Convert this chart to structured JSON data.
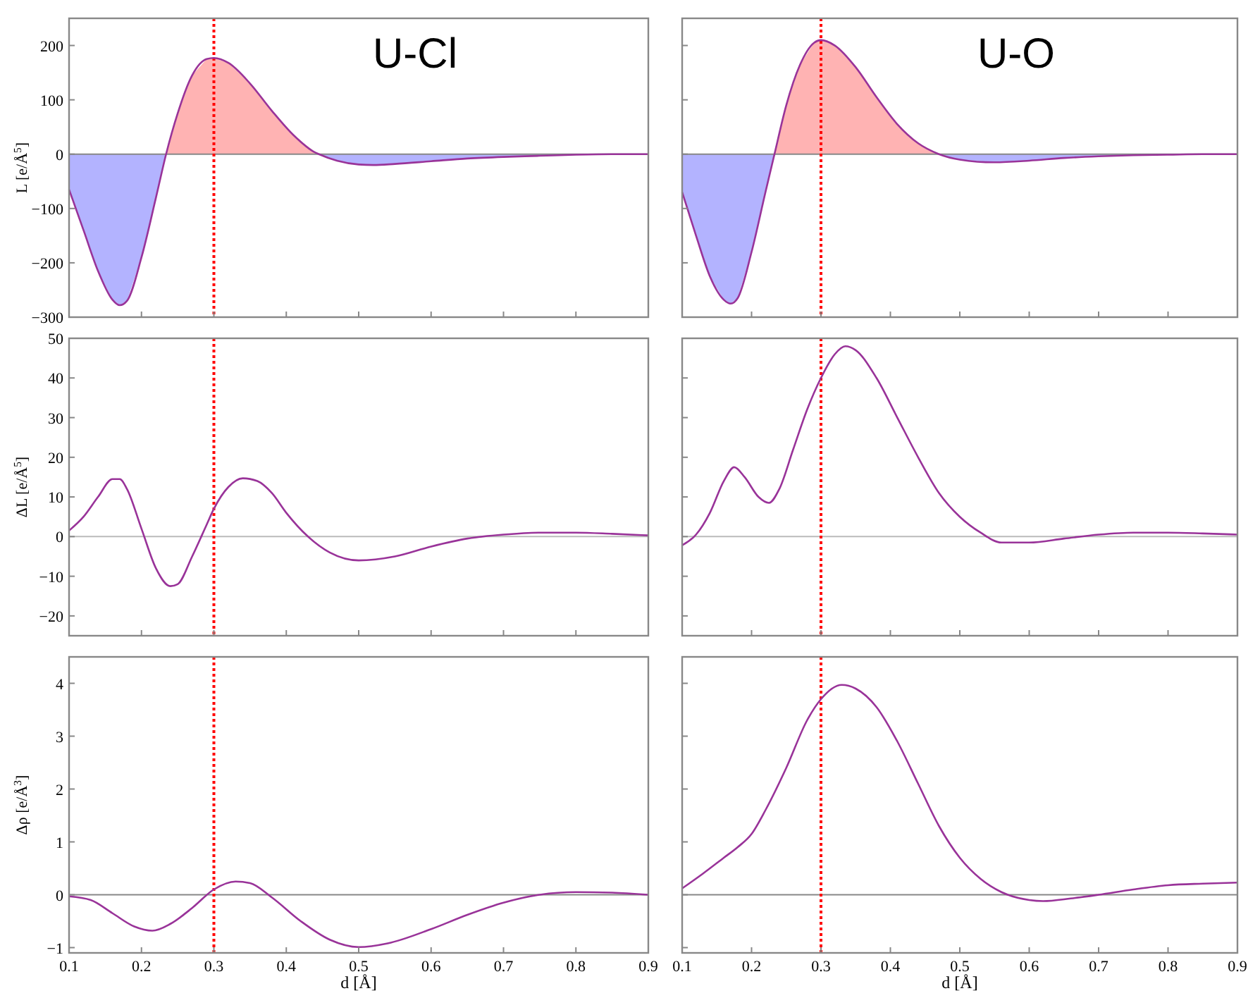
{
  "chart_data": [
    {
      "type": "line",
      "title": "U-Cl",
      "ylabel": "L [e/Å$^{5}$]",
      "xlim": [
        0.1,
        0.9
      ],
      "xticks": [
        {
          "value": 0.1,
          "label": null
        },
        {
          "value": 0.2,
          "label": null
        },
        {
          "value": 0.3,
          "label": null
        },
        {
          "value": 0.4,
          "label": null
        },
        {
          "value": 0.5,
          "label": null
        },
        {
          "value": 0.6,
          "label": null
        },
        {
          "value": 0.7,
          "label": null
        },
        {
          "value": 0.8,
          "label": null
        },
        {
          "value": 0.9,
          "label": null
        }
      ],
      "ylim": [
        -300,
        250
      ],
      "yticks": [
        -300,
        -200,
        -100,
        0,
        100,
        200
      ],
      "tick_labels": "y",
      "ref_lines": [
        {
          "axis": "y",
          "value": 0,
          "color": "#888888",
          "line_style": "solid"
        },
        {
          "axis": "x",
          "value": 0.3,
          "color": "#ff0000",
          "line_style": "dotted"
        }
      ],
      "series": [
        {
          "type": "area",
          "color": "#ffb3b3",
          "x": [
            0.234,
            0.25,
            0.27,
            0.29,
            0.3,
            0.32,
            0.35,
            0.38,
            0.41,
            0.44,
            0.445
          ],
          "values": [
            0,
            75,
            145,
            175,
            177,
            168,
            130,
            80,
            35,
            3,
            0
          ]
        },
        {
          "type": "area",
          "color": "#b3b3ff",
          "x": [
            0.1,
            0.12,
            0.14,
            0.16,
            0.17,
            0.18,
            0.2,
            0.22,
            0.234
          ],
          "values": [
            -65,
            -140,
            -215,
            -268,
            -278,
            -270,
            -190,
            -80,
            0
          ]
        },
        {
          "type": "area",
          "color": "#b3b3ff",
          "x": [
            0.445,
            0.47,
            0.5,
            0.52,
            0.55,
            0.6,
            0.65,
            0.7,
            0.75,
            0.8,
            0.85,
            0.9
          ],
          "values": [
            0,
            -12,
            -19,
            -20,
            -18,
            -13,
            -8,
            -5,
            -3,
            -1,
            0,
            0
          ]
        },
        {
          "color": "#993399",
          "x": [
            0.1,
            0.12,
            0.14,
            0.16,
            0.17,
            0.18,
            0.2,
            0.22,
            0.234,
            0.25,
            0.27,
            0.29,
            0.3,
            0.32,
            0.35,
            0.38,
            0.41,
            0.44,
            0.445,
            0.47,
            0.5,
            0.52,
            0.55,
            0.6,
            0.65,
            0.7,
            0.75,
            0.8,
            0.85,
            0.9
          ],
          "values": [
            -65,
            -140,
            -215,
            -268,
            -278,
            -270,
            -190,
            -80,
            0,
            75,
            145,
            175,
            177,
            168,
            130,
            80,
            35,
            3,
            0,
            -12,
            -19,
            -20,
            -18,
            -13,
            -8,
            -5,
            -3,
            -1,
            0,
            0
          ]
        }
      ]
    },
    {
      "type": "line",
      "title": "U-O",
      "xlim": [
        0.1,
        0.9
      ],
      "xticks": [
        {
          "value": 0.1,
          "label": null
        },
        {
          "value": 0.2,
          "label": null
        },
        {
          "value": 0.3,
          "label": null
        },
        {
          "value": 0.4,
          "label": null
        },
        {
          "value": 0.5,
          "label": null
        },
        {
          "value": 0.6,
          "label": null
        },
        {
          "value": 0.7,
          "label": null
        },
        {
          "value": 0.8,
          "label": null
        },
        {
          "value": 0.9,
          "label": null
        }
      ],
      "ylim": [
        -300,
        250
      ],
      "yticks": [
        {
          "value": -300,
          "label": null
        },
        {
          "value": -200,
          "label": null
        },
        {
          "value": -100,
          "label": null
        },
        {
          "value": 0,
          "label": null
        },
        {
          "value": 100,
          "label": null
        },
        {
          "value": 200,
          "label": null
        }
      ],
      "tick_labels": false,
      "ref_lines": [
        {
          "axis": "y",
          "value": 0,
          "color": "#888888",
          "line_style": "solid"
        },
        {
          "axis": "x",
          "value": 0.3,
          "color": "#ff0000",
          "line_style": "dotted"
        }
      ],
      "series": [
        {
          "type": "area",
          "color": "#ffb3b3",
          "x": [
            0.233,
            0.25,
            0.27,
            0.29,
            0.3,
            0.32,
            0.35,
            0.38,
            0.41,
            0.44,
            0.47
          ],
          "values": [
            0,
            90,
            165,
            205,
            210,
            200,
            160,
            105,
            55,
            20,
            0
          ]
        },
        {
          "type": "area",
          "color": "#b3b3ff",
          "x": [
            0.1,
            0.12,
            0.14,
            0.16,
            0.17,
            0.18,
            0.2,
            0.22,
            0.233
          ],
          "values": [
            -70,
            -150,
            -225,
            -268,
            -275,
            -265,
            -180,
            -70,
            0
          ]
        },
        {
          "type": "area",
          "color": "#b3b3ff",
          "x": [
            0.47,
            0.5,
            0.55,
            0.6,
            0.65,
            0.7,
            0.75,
            0.8,
            0.85,
            0.9
          ],
          "values": [
            0,
            -10,
            -15,
            -12,
            -7,
            -4,
            -2,
            -1,
            0,
            0
          ]
        },
        {
          "color": "#993399",
          "x": [
            0.1,
            0.12,
            0.14,
            0.16,
            0.17,
            0.18,
            0.2,
            0.22,
            0.233,
            0.25,
            0.27,
            0.29,
            0.3,
            0.32,
            0.35,
            0.38,
            0.41,
            0.44,
            0.47,
            0.5,
            0.55,
            0.6,
            0.65,
            0.7,
            0.75,
            0.8,
            0.85,
            0.9
          ],
          "values": [
            -70,
            -150,
            -225,
            -268,
            -275,
            -265,
            -180,
            -70,
            0,
            90,
            165,
            205,
            210,
            200,
            160,
            105,
            55,
            20,
            0,
            -10,
            -15,
            -12,
            -7,
            -4,
            -2,
            -1,
            0,
            0
          ]
        }
      ]
    },
    {
      "type": "line",
      "ylabel": "ΔL [e/Å$^{5}$]",
      "xlim": [
        0.1,
        0.9
      ],
      "xticks": [
        {
          "value": 0.1,
          "label": null
        },
        {
          "value": 0.2,
          "label": null
        },
        {
          "value": 0.3,
          "label": null
        },
        {
          "value": 0.4,
          "label": null
        },
        {
          "value": 0.5,
          "label": null
        },
        {
          "value": 0.6,
          "label": null
        },
        {
          "value": 0.7,
          "label": null
        },
        {
          "value": 0.8,
          "label": null
        },
        {
          "value": 0.9,
          "label": null
        }
      ],
      "ylim": [
        -25,
        50
      ],
      "yticks": [
        -20,
        -10,
        0,
        10,
        20,
        30,
        40,
        50
      ],
      "tick_labels": "y",
      "ref_lines": [
        {
          "axis": "y",
          "value": 0,
          "color": "#bbbbbb",
          "line_style": "solid"
        },
        {
          "axis": "x",
          "value": 0.3,
          "color": "#ff0000",
          "line_style": "dotted"
        }
      ],
      "series": [
        {
          "color": "#993399",
          "x": [
            0.1,
            0.12,
            0.14,
            0.16,
            0.17,
            0.18,
            0.2,
            0.22,
            0.24,
            0.25,
            0.27,
            0.29,
            0.3,
            0.32,
            0.34,
            0.36,
            0.38,
            0.4,
            0.43,
            0.46,
            0.5,
            0.55,
            0.6,
            0.65,
            0.7,
            0.75,
            0.8,
            0.85,
            0.9
          ],
          "values": [
            1.5,
            5,
            10,
            14.5,
            14.5,
            12,
            2,
            -8,
            -12.5,
            -12,
            -5,
            3,
            7,
            12.5,
            14.7,
            14,
            11,
            6,
            0,
            -4,
            -6,
            -5,
            -2.5,
            -0.5,
            0.5,
            1,
            1,
            0.7,
            0.3
          ]
        }
      ]
    },
    {
      "type": "line",
      "xlim": [
        0.1,
        0.9
      ],
      "xticks": [
        {
          "value": 0.1,
          "label": null
        },
        {
          "value": 0.2,
          "label": null
        },
        {
          "value": 0.3,
          "label": null
        },
        {
          "value": 0.4,
          "label": null
        },
        {
          "value": 0.5,
          "label": null
        },
        {
          "value": 0.6,
          "label": null
        },
        {
          "value": 0.7,
          "label": null
        },
        {
          "value": 0.8,
          "label": null
        },
        {
          "value": 0.9,
          "label": null
        }
      ],
      "ylim": [
        -25,
        50
      ],
      "yticks": [
        {
          "value": -20,
          "label": null
        },
        {
          "value": -10,
          "label": null
        },
        {
          "value": 0,
          "label": null
        },
        {
          "value": 10,
          "label": null
        },
        {
          "value": 20,
          "label": null
        },
        {
          "value": 30,
          "label": null
        },
        {
          "value": 40,
          "label": null
        },
        {
          "value": 50,
          "label": null
        }
      ],
      "tick_labels": false,
      "ref_lines": [
        {
          "axis": "y",
          "value": 0,
          "color": "#bbbbbb",
          "line_style": "solid"
        },
        {
          "axis": "x",
          "value": 0.3,
          "color": "#ff0000",
          "line_style": "dotted"
        }
      ],
      "series": [
        {
          "color": "#993399",
          "x": [
            0.1,
            0.12,
            0.14,
            0.16,
            0.175,
            0.19,
            0.21,
            0.225,
            0.24,
            0.26,
            0.28,
            0.3,
            0.32,
            0.335,
            0.35,
            0.38,
            0.41,
            0.44,
            0.47,
            0.5,
            0.53,
            0.56,
            0.6,
            0.65,
            0.7,
            0.75,
            0.8,
            0.85,
            0.9
          ],
          "values": [
            -2.2,
            0.5,
            6,
            14,
            17.5,
            15,
            10,
            8.5,
            12,
            22,
            32,
            40,
            46,
            48,
            47,
            40,
            30,
            20,
            11,
            5,
            1,
            -1.5,
            -1.5,
            -0.5,
            0.5,
            1,
            1,
            0.8,
            0.5
          ]
        }
      ]
    },
    {
      "type": "line",
      "xlabel": "d [Å]",
      "ylabel": "Δρ [e/Å$^{3}$]",
      "xlim": [
        0.1,
        0.9
      ],
      "xticks": [
        0.1,
        0.2,
        0.3,
        0.4,
        0.5,
        0.6,
        0.7,
        0.8,
        0.9
      ],
      "ylim": [
        -1.1,
        4.5
      ],
      "yticks": [
        -1,
        0,
        1,
        2,
        3,
        4
      ],
      "ref_lines": [
        {
          "axis": "y",
          "value": 0,
          "color": "#888888",
          "line_style": "solid"
        },
        {
          "axis": "x",
          "value": 0.3,
          "color": "#ff0000",
          "line_style": "dotted"
        }
      ],
      "series": [
        {
          "color": "#993399",
          "x": [
            0.1,
            0.13,
            0.16,
            0.19,
            0.215,
            0.24,
            0.27,
            0.3,
            0.33,
            0.35,
            0.38,
            0.42,
            0.46,
            0.5,
            0.54,
            0.6,
            0.65,
            0.7,
            0.75,
            0.8,
            0.85,
            0.9
          ],
          "values": [
            -0.03,
            -0.1,
            -0.35,
            -0.6,
            -0.68,
            -0.55,
            -0.25,
            0.1,
            0.25,
            0.22,
            -0.05,
            -0.5,
            -0.85,
            -0.99,
            -0.92,
            -0.65,
            -0.38,
            -0.15,
            0,
            0.05,
            0.04,
            0
          ]
        }
      ]
    },
    {
      "type": "line",
      "xlabel": "d [Å]",
      "xlim": [
        0.1,
        0.9
      ],
      "xticks": [
        0.1,
        0.2,
        0.3,
        0.4,
        0.5,
        0.6,
        0.7,
        0.8,
        0.9
      ],
      "ylim": [
        -1.1,
        4.5
      ],
      "yticks": [
        {
          "value": -1,
          "label": null
        },
        {
          "value": 0,
          "label": null
        },
        {
          "value": 1,
          "label": null
        },
        {
          "value": 2,
          "label": null
        },
        {
          "value": 3,
          "label": null
        },
        {
          "value": 4,
          "label": null
        }
      ],
      "tick_labels": "x",
      "ref_lines": [
        {
          "axis": "y",
          "value": 0,
          "color": "#888888",
          "line_style": "solid"
        },
        {
          "axis": "x",
          "value": 0.3,
          "color": "#ff0000",
          "line_style": "dotted"
        }
      ],
      "series": [
        {
          "color": "#993399",
          "x": [
            0.1,
            0.13,
            0.16,
            0.18,
            0.2,
            0.22,
            0.25,
            0.28,
            0.3,
            0.33,
            0.35,
            0.38,
            0.41,
            0.44,
            0.47,
            0.5,
            0.53,
            0.56,
            0.6,
            0.62,
            0.66,
            0.7,
            0.75,
            0.8,
            0.85,
            0.9
          ],
          "values": [
            0.12,
            0.4,
            0.7,
            0.9,
            1.15,
            1.6,
            2.4,
            3.3,
            3.7,
            3.97,
            3.9,
            3.55,
            2.9,
            2.1,
            1.3,
            0.7,
            0.3,
            0.05,
            -0.1,
            -0.12,
            -0.07,
            0,
            0.1,
            0.18,
            0.21,
            0.23
          ]
        }
      ]
    }
  ]
}
